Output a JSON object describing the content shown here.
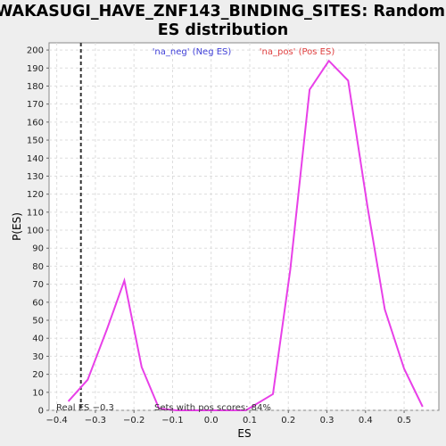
{
  "chart_data": {
    "type": "line",
    "title_line1": "WAKASUGI_HAVE_ZNF143_BINDING_SITES: Random",
    "title_line2": "ES distribution",
    "xlabel": "ES",
    "ylabel": "P(ES)",
    "xlim": [
      -0.42,
      0.59
    ],
    "ylim": [
      0,
      204
    ],
    "x_ticks": [
      -0.4,
      -0.3,
      -0.2,
      -0.1,
      0.0,
      0.1,
      0.2,
      0.3,
      0.4,
      0.5
    ],
    "x_tick_labels": [
      "−0.4",
      "−0.3",
      "−0.2",
      "−0.1",
      "0.0",
      "0.1",
      "0.2",
      "0.3",
      "0.4",
      "0.5"
    ],
    "y_ticks": [
      0,
      10,
      20,
      30,
      40,
      50,
      60,
      70,
      80,
      90,
      100,
      110,
      120,
      130,
      140,
      150,
      160,
      170,
      180,
      190,
      200
    ],
    "grid": true,
    "legend": [
      {
        "label": "'na_neg' (Neg ES)",
        "color": "#4040d8"
      },
      {
        "label": "'na_pos' (Pos ES)",
        "color": "#e04040"
      }
    ],
    "series": [
      {
        "color": "#e840e8",
        "x": [
          -0.37,
          -0.32,
          -0.27,
          -0.225,
          -0.18,
          -0.135,
          -0.09,
          -0.045,
          0.0,
          0.045,
          0.09,
          0.16,
          0.205,
          0.255,
          0.305,
          0.355,
          0.405,
          0.45,
          0.5,
          0.548
        ],
        "y": [
          5,
          17,
          45,
          72,
          24,
          1,
          0,
          0,
          0,
          0,
          0,
          9,
          78,
          178,
          194,
          183,
          113,
          56,
          23,
          2
        ]
      }
    ],
    "real_es": -0.3375,
    "real_es_label": "Real ES −0.3",
    "annotation": "Sets with pos scores: 84%"
  }
}
